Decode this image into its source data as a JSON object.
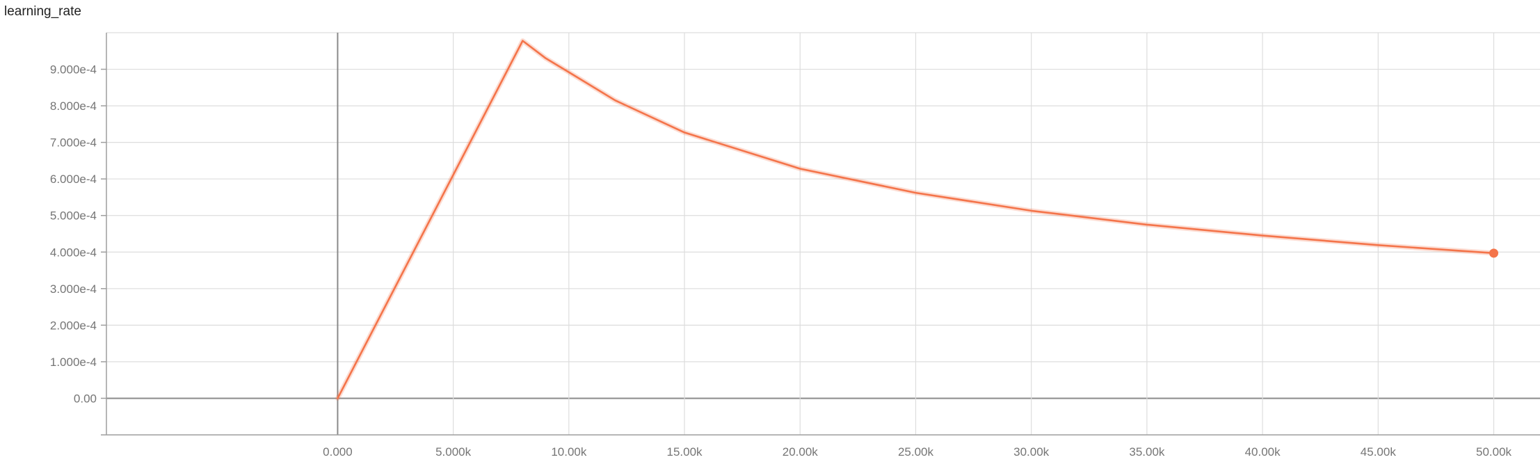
{
  "chart_data": {
    "type": "line",
    "title": "learning_rate",
    "xlabel": "",
    "ylabel": "",
    "xlim": [
      -10000,
      52000
    ],
    "ylim": [
      -0.0001,
      0.001
    ],
    "grid": true,
    "x_ticks": [
      0,
      5000,
      10000,
      15000,
      20000,
      25000,
      30000,
      35000,
      40000,
      45000,
      50000
    ],
    "x_tick_labels": [
      "0.000",
      "5.000k",
      "10.00k",
      "15.00k",
      "20.00k",
      "25.00k",
      "30.00k",
      "35.00k",
      "40.00k",
      "45.00k",
      "50.00k"
    ],
    "y_ticks": [
      0,
      0.0001,
      0.0002,
      0.0003,
      0.0004,
      0.0005,
      0.0006,
      0.0007,
      0.0008,
      0.0009
    ],
    "y_tick_labels": [
      "0.00",
      "1.000e-4",
      "2.000e-4",
      "3.000e-4",
      "4.000e-4",
      "5.000e-4",
      "6.000e-4",
      "7.000e-4",
      "8.000e-4",
      "9.000e-4"
    ],
    "series": [
      {
        "color": "#f4744a",
        "x": [
          0,
          8000,
          9000,
          10000,
          12000,
          15000,
          20000,
          25000,
          30000,
          35000,
          40000,
          45000,
          50000
        ],
        "y": [
          0,
          0.000978,
          0.00093,
          0.000892,
          0.000815,
          0.000727,
          0.000628,
          0.000562,
          0.000513,
          0.000475,
          0.000445,
          0.000419,
          0.000397
        ]
      }
    ],
    "last_point": {
      "x": 50000,
      "y": 0.000397
    }
  }
}
